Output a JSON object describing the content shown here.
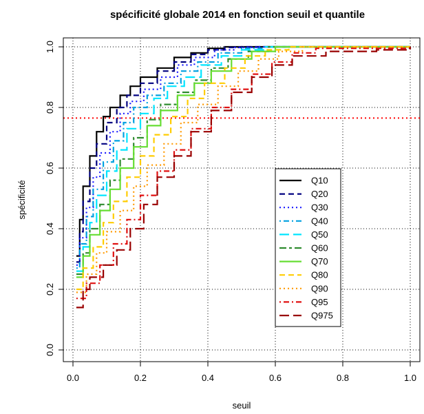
{
  "chart_data": {
    "type": "line",
    "title": "spécificité globale 2014 en fonction seuil et quantile",
    "xlabel": "seuil",
    "ylabel": "spécificité",
    "xlim": [
      0.0,
      1.0
    ],
    "ylim": [
      0.0,
      1.0
    ],
    "x_ticks": [
      "0.0",
      "0.2",
      "0.4",
      "0.6",
      "0.8",
      "1.0"
    ],
    "y_ticks": [
      "0.0",
      "0.2",
      "0.4",
      "0.6",
      "0.8",
      "1.0"
    ],
    "grid": true,
    "grid_style": "dotted",
    "legend_position": "center-right",
    "reference_line": {
      "orientation": "horizontal",
      "y": 0.765,
      "color": "#ff0000",
      "style": "dotted"
    },
    "series": [
      {
        "name": "Q10",
        "color": "#000000",
        "dash": "solid",
        "points": [
          [
            0.01,
            0.31
          ],
          [
            0.02,
            0.43
          ],
          [
            0.03,
            0.54
          ],
          [
            0.05,
            0.64
          ],
          [
            0.07,
            0.72
          ],
          [
            0.09,
            0.77
          ],
          [
            0.11,
            0.8
          ],
          [
            0.14,
            0.84
          ],
          [
            0.17,
            0.87
          ],
          [
            0.2,
            0.9
          ],
          [
            0.25,
            0.93
          ],
          [
            0.3,
            0.965
          ],
          [
            0.35,
            0.98
          ],
          [
            0.4,
            0.995
          ],
          [
            0.45,
            1.0
          ],
          [
            1.0,
            1.0
          ]
        ]
      },
      {
        "name": "Q20",
        "color": "#000080",
        "dash": "dashed",
        "points": [
          [
            0.01,
            0.29
          ],
          [
            0.02,
            0.39
          ],
          [
            0.03,
            0.49
          ],
          [
            0.05,
            0.6
          ],
          [
            0.07,
            0.68
          ],
          [
            0.1,
            0.75
          ],
          [
            0.13,
            0.8
          ],
          [
            0.16,
            0.84
          ],
          [
            0.2,
            0.88
          ],
          [
            0.25,
            0.92
          ],
          [
            0.3,
            0.95
          ],
          [
            0.35,
            0.975
          ],
          [
            0.4,
            0.99
          ],
          [
            0.45,
            0.998
          ],
          [
            0.5,
            1.0
          ],
          [
            1.0,
            1.0
          ]
        ]
      },
      {
        "name": "Q30",
        "color": "#1a1aff",
        "dash": "dotted",
        "points": [
          [
            0.01,
            0.28
          ],
          [
            0.02,
            0.37
          ],
          [
            0.04,
            0.47
          ],
          [
            0.06,
            0.57
          ],
          [
            0.08,
            0.65
          ],
          [
            0.11,
            0.72
          ],
          [
            0.14,
            0.78
          ],
          [
            0.17,
            0.82
          ],
          [
            0.21,
            0.86
          ],
          [
            0.26,
            0.9
          ],
          [
            0.31,
            0.94
          ],
          [
            0.36,
            0.965
          ],
          [
            0.42,
            0.99
          ],
          [
            0.48,
            0.998
          ],
          [
            0.55,
            1.0
          ],
          [
            1.0,
            1.0
          ]
        ]
      },
      {
        "name": "Q40",
        "color": "#00a0e0",
        "dash": "dashdot",
        "points": [
          [
            0.01,
            0.27
          ],
          [
            0.02,
            0.35
          ],
          [
            0.04,
            0.44
          ],
          [
            0.06,
            0.53
          ],
          [
            0.09,
            0.62
          ],
          [
            0.12,
            0.69
          ],
          [
            0.15,
            0.75
          ],
          [
            0.18,
            0.8
          ],
          [
            0.22,
            0.84
          ],
          [
            0.27,
            0.88
          ],
          [
            0.32,
            0.92
          ],
          [
            0.37,
            0.95
          ],
          [
            0.43,
            0.98
          ],
          [
            0.5,
            0.995
          ],
          [
            0.56,
            1.0
          ],
          [
            1.0,
            1.0
          ]
        ]
      },
      {
        "name": "Q50",
        "color": "#00e5ff",
        "dash": "longdash",
        "points": [
          [
            0.01,
            0.26
          ],
          [
            0.03,
            0.34
          ],
          [
            0.05,
            0.42
          ],
          [
            0.07,
            0.51
          ],
          [
            0.1,
            0.59
          ],
          [
            0.13,
            0.66
          ],
          [
            0.16,
            0.73
          ],
          [
            0.2,
            0.78
          ],
          [
            0.24,
            0.83
          ],
          [
            0.28,
            0.87
          ],
          [
            0.33,
            0.9
          ],
          [
            0.38,
            0.94
          ],
          [
            0.44,
            0.97
          ],
          [
            0.5,
            0.99
          ],
          [
            0.57,
            1.0
          ],
          [
            1.0,
            1.0
          ]
        ]
      },
      {
        "name": "Q60",
        "color": "#2e8b2e",
        "dash": "twodash",
        "points": [
          [
            0.01,
            0.25
          ],
          [
            0.03,
            0.32
          ],
          [
            0.05,
            0.4
          ],
          [
            0.08,
            0.48
          ],
          [
            0.11,
            0.56
          ],
          [
            0.14,
            0.63
          ],
          [
            0.18,
            0.7
          ],
          [
            0.22,
            0.76
          ],
          [
            0.26,
            0.81
          ],
          [
            0.31,
            0.85
          ],
          [
            0.36,
            0.89
          ],
          [
            0.41,
            0.93
          ],
          [
            0.46,
            0.96
          ],
          [
            0.52,
            0.985
          ],
          [
            0.58,
            1.0
          ],
          [
            1.0,
            1.0
          ]
        ]
      },
      {
        "name": "Q70",
        "color": "#66dd33",
        "dash": "solid",
        "points": [
          [
            0.01,
            0.24
          ],
          [
            0.03,
            0.31
          ],
          [
            0.05,
            0.38
          ],
          [
            0.08,
            0.46
          ],
          [
            0.11,
            0.53
          ],
          [
            0.14,
            0.6
          ],
          [
            0.18,
            0.67
          ],
          [
            0.22,
            0.74
          ],
          [
            0.26,
            0.79
          ],
          [
            0.31,
            0.84
          ],
          [
            0.36,
            0.88
          ],
          [
            0.41,
            0.92
          ],
          [
            0.47,
            0.96
          ],
          [
            0.53,
            0.985
          ],
          [
            0.6,
            1.0
          ],
          [
            1.0,
            1.0
          ]
        ]
      },
      {
        "name": "Q80",
        "color": "#ffcc00",
        "dash": "dashed",
        "points": [
          [
            0.01,
            0.2
          ],
          [
            0.03,
            0.27
          ],
          [
            0.06,
            0.34
          ],
          [
            0.09,
            0.42
          ],
          [
            0.12,
            0.49
          ],
          [
            0.16,
            0.57
          ],
          [
            0.2,
            0.64
          ],
          [
            0.24,
            0.71
          ],
          [
            0.29,
            0.77
          ],
          [
            0.34,
            0.83
          ],
          [
            0.39,
            0.88
          ],
          [
            0.45,
            0.93
          ],
          [
            0.51,
            0.97
          ],
          [
            0.57,
            0.99
          ],
          [
            0.64,
            1.0
          ],
          [
            1.0,
            1.0
          ]
        ]
      },
      {
        "name": "Q90",
        "color": "#ff9900",
        "dash": "dotted",
        "points": [
          [
            0.01,
            0.19
          ],
          [
            0.04,
            0.25
          ],
          [
            0.07,
            0.32
          ],
          [
            0.1,
            0.39
          ],
          [
            0.14,
            0.46
          ],
          [
            0.18,
            0.54
          ],
          [
            0.22,
            0.61
          ],
          [
            0.27,
            0.68
          ],
          [
            0.32,
            0.75
          ],
          [
            0.37,
            0.81
          ],
          [
            0.43,
            0.87
          ],
          [
            0.49,
            0.92
          ],
          [
            0.55,
            0.96
          ],
          [
            0.61,
            0.985
          ],
          [
            0.68,
            1.0
          ],
          [
            1.0,
            1.0
          ]
        ]
      },
      {
        "name": "Q95",
        "color": "#e01010",
        "dash": "dashdot",
        "points": [
          [
            0.01,
            0.17
          ],
          [
            0.04,
            0.22
          ],
          [
            0.08,
            0.28
          ],
          [
            0.12,
            0.35
          ],
          [
            0.16,
            0.43
          ],
          [
            0.2,
            0.51
          ],
          [
            0.25,
            0.59
          ],
          [
            0.3,
            0.66
          ],
          [
            0.35,
            0.73
          ],
          [
            0.41,
            0.8
          ],
          [
            0.47,
            0.86
          ],
          [
            0.53,
            0.91
          ],
          [
            0.59,
            0.95
          ],
          [
            0.65,
            0.98
          ],
          [
            0.72,
            0.995
          ],
          [
            1.0,
            1.0
          ]
        ]
      },
      {
        "name": "Q975",
        "color": "#990000",
        "dash": "longdash",
        "points": [
          [
            0.01,
            0.14
          ],
          [
            0.03,
            0.2
          ],
          [
            0.05,
            0.24
          ],
          [
            0.09,
            0.28
          ],
          [
            0.13,
            0.33
          ],
          [
            0.17,
            0.4
          ],
          [
            0.21,
            0.48
          ],
          [
            0.25,
            0.57
          ],
          [
            0.3,
            0.64
          ],
          [
            0.35,
            0.72
          ],
          [
            0.41,
            0.79
          ],
          [
            0.47,
            0.85
          ],
          [
            0.53,
            0.9
          ],
          [
            0.59,
            0.94
          ],
          [
            0.65,
            0.97
          ],
          [
            0.75,
            0.985
          ],
          [
            0.9,
            0.99
          ],
          [
            1.0,
            1.0
          ]
        ]
      }
    ]
  }
}
